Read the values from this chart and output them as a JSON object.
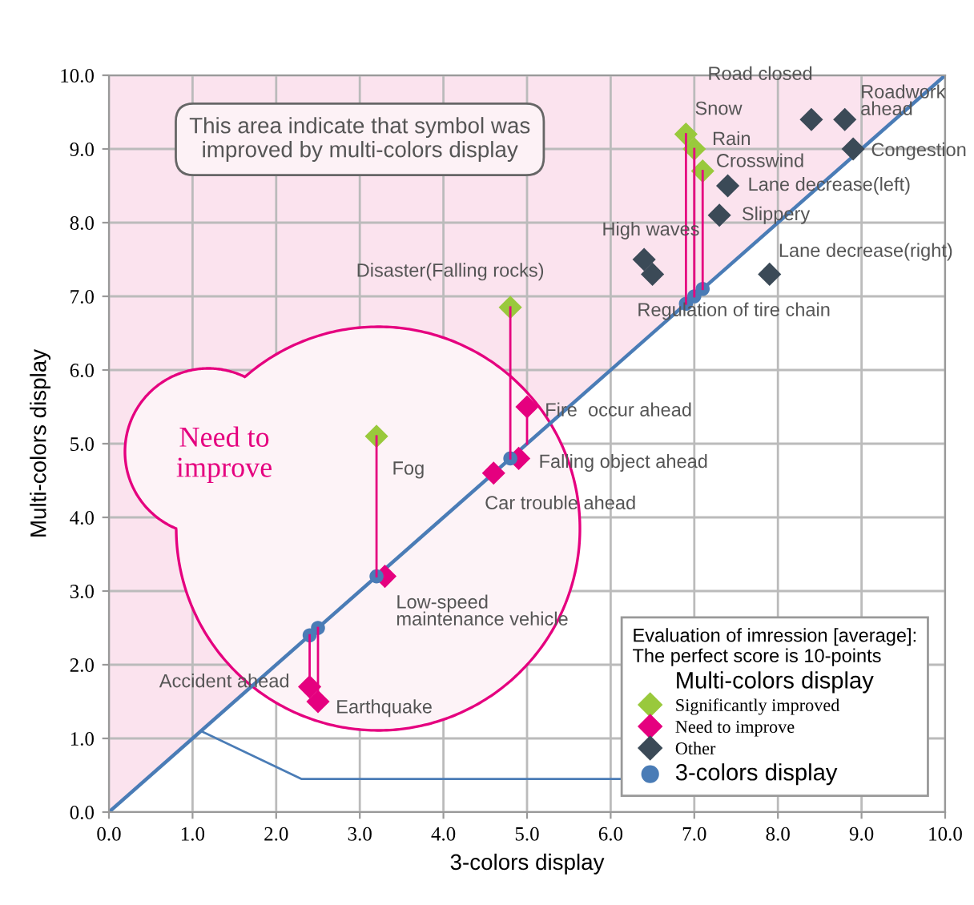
{
  "chart_data": {
    "type": "scatter",
    "xlabel": "3-colors display",
    "ylabel": "Multi-colors display",
    "legend_title": "Evaluation of imression [average]:\nThe perfect score is 10-points",
    "series": [
      {
        "name": "Significantly improved",
        "color": "#99c93c",
        "x": [
          4.8,
          3.2,
          6.9,
          7.0,
          7.1
        ],
        "values": [
          6.85,
          5.1,
          9.2,
          9.0,
          8.7
        ]
      },
      {
        "name": "Need to improve",
        "color": "#e5007f",
        "x": [
          5.0,
          4.9,
          4.6,
          3.3,
          2.4,
          2.5
        ],
        "values": [
          5.5,
          4.8,
          4.6,
          3.2,
          1.7,
          1.5
        ]
      },
      {
        "name": "Other",
        "color": "#3b4a57",
        "x": [
          8.4,
          8.8,
          8.9,
          7.4,
          7.3,
          6.4,
          6.5,
          7.9
        ],
        "values": [
          9.4,
          9.4,
          9.0,
          8.5,
          8.1,
          7.5,
          7.3,
          7.3
        ]
      },
      {
        "name": "3-colors display",
        "color": "#4a7cb6",
        "marker": "circle",
        "x": [
          2.4,
          2.5,
          3.2,
          4.8,
          6.9,
          7.0,
          7.1
        ],
        "values": [
          2.4,
          2.5,
          3.2,
          4.8,
          6.9,
          7.0,
          7.1
        ]
      },
      {
        "type": "line",
        "color": "#4a7cb6",
        "marker": "none",
        "x": [
          0,
          10
        ],
        "values": [
          0,
          10
        ]
      },
      {
        "type": "line",
        "color": "#e5007f",
        "marker": "none",
        "x": [
          4.8,
          4.8
        ],
        "values": [
          6.85,
          4.8
        ]
      },
      {
        "type": "line",
        "color": "#e5007f",
        "marker": "none",
        "x": [
          3.2,
          3.2
        ],
        "values": [
          5.1,
          3.2
        ]
      },
      {
        "type": "line",
        "color": "#e5007f",
        "marker": "none",
        "x": [
          6.9,
          6.9
        ],
        "values": [
          9.2,
          6.9
        ]
      },
      {
        "type": "line",
        "color": "#e5007f",
        "marker": "none",
        "x": [
          7.0,
          7.0
        ],
        "values": [
          9.0,
          7.0
        ]
      },
      {
        "type": "line",
        "color": "#e5007f",
        "marker": "none",
        "x": [
          7.1,
          7.1
        ],
        "values": [
          8.7,
          7.1
        ]
      },
      {
        "type": "line",
        "color": "#e5007f",
        "marker": "none",
        "x": [
          5.0,
          5.0
        ],
        "values": [
          5.5,
          5.0
        ]
      },
      {
        "type": "line",
        "color": "#e5007f",
        "marker": "none",
        "x": [
          2.4,
          2.4
        ],
        "values": [
          1.7,
          2.4
        ]
      },
      {
        "type": "line",
        "color": "#e5007f",
        "marker": "none",
        "x": [
          2.5,
          2.5
        ],
        "values": [
          1.5,
          2.5
        ]
      }
    ],
    "marker": "diamond",
    "xlim": [
      0,
      10
    ],
    "ylim": [
      0,
      10
    ],
    "xticks": [
      {
        "value": 0,
        "label": "0.0"
      },
      {
        "value": 1,
        "label": "1.0"
      },
      {
        "value": 2,
        "label": "2.0"
      },
      {
        "value": 3,
        "label": "3.0"
      },
      {
        "value": 4,
        "label": "4.0"
      },
      {
        "value": 5,
        "label": "5.0"
      },
      {
        "value": 6,
        "label": "6.0"
      },
      {
        "value": 7,
        "label": "7.0"
      },
      {
        "value": 8,
        "label": "8.0"
      },
      {
        "value": 9,
        "label": "9.0"
      },
      {
        "value": 10,
        "label": "10.0"
      }
    ],
    "yticks": [
      {
        "value": 0,
        "label": "0.0"
      },
      {
        "value": 1,
        "label": "1.0"
      },
      {
        "value": 2,
        "label": "2.0"
      },
      {
        "value": 3,
        "label": "3.0"
      },
      {
        "value": 4,
        "label": "4.0"
      },
      {
        "value": 5,
        "label": "5.0"
      },
      {
        "value": 6,
        "label": "6.0"
      },
      {
        "value": 7,
        "label": "7.0"
      },
      {
        "value": 8,
        "label": "8.0"
      },
      {
        "value": 9,
        "label": "9.0"
      },
      {
        "value": 10,
        "label": "10.0"
      }
    ],
    "grid": true,
    "legend": "bottom right",
    "annotations": [
      "This area indicate that symbol was\nimproved by multi-colors display",
      "Need to\nimprove",
      "Multi-colors display",
      {
        "text": "Disaster(Falling rocks)",
        "x": 4.8,
        "y": 6.85
      },
      {
        "text": "Fog",
        "x": 3.2,
        "y": 5.1
      },
      {
        "text": "Snow",
        "x": 6.9,
        "y": 9.2
      },
      {
        "text": "Rain",
        "x": 7.0,
        "y": 9.0
      },
      {
        "text": "Crosswind",
        "x": 7.1,
        "y": 8.7
      },
      {
        "text": "Fire  occur ahead",
        "x": 5.0,
        "y": 5.5
      },
      {
        "text": "Falling object ahead",
        "x": 4.9,
        "y": 4.8
      },
      {
        "text": "Car trouble ahead",
        "x": 4.6,
        "y": 4.6
      },
      {
        "text": "Low-speed\nmaintenance vehicle",
        "x": 3.3,
        "y": 3.2
      },
      {
        "text": "Accident ahead",
        "x": 2.4,
        "y": 1.7
      },
      {
        "text": "Earthquake",
        "x": 2.5,
        "y": 1.5
      },
      {
        "text": "Road closed",
        "x": 8.4,
        "y": 9.4
      },
      {
        "text": "Roadwork\nahead",
        "x": 8.8,
        "y": 9.4
      },
      {
        "text": "Congestion",
        "x": 8.9,
        "y": 9.0
      },
      {
        "text": "Lane decrease(left)",
        "x": 7.4,
        "y": 8.5
      },
      {
        "text": "Slippery",
        "x": 7.3,
        "y": 8.1
      },
      {
        "text": "High waves",
        "x": 6.4,
        "y": 7.5
      },
      {
        "text": "Lane decrease(right)",
        "x": 7.9,
        "y": 7.3
      },
      {
        "text": "Regulation of tire chain",
        "x": 7.1,
        "y": 7.1
      }
    ]
  }
}
